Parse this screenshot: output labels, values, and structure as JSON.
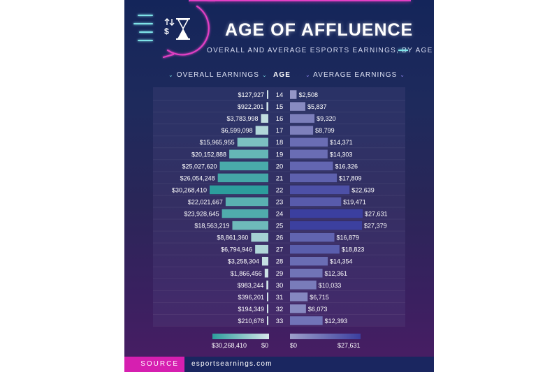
{
  "title": "AGE OF AFFLUENCE",
  "subtitle": "OVERALL AND AVERAGE ESPORTS EARNINGS, BY AGE",
  "headers": {
    "overall": "OVERALL EARNINGS",
    "age": "AGE",
    "average": "AVERAGE EARNINGS"
  },
  "colors": {
    "overall_low": "#d6e7ea",
    "overall_high": "#2c9d9c",
    "average_low": "#9d9fca",
    "average_high": "#3b3f9f",
    "accent_pink": "#d61fb0",
    "accent_cyan": "#7fe3e8"
  },
  "legend": {
    "overall_max": "$30,268,410",
    "overall_min": "$0",
    "average_min": "$0",
    "average_max": "$27,631"
  },
  "source": {
    "label": "SOURCE",
    "text": "esportsearnings.com"
  },
  "icons": [
    "hourglass-icon",
    "dollar-arrows-icon"
  ],
  "chart_data": {
    "type": "bar",
    "layout": "diverging",
    "categories": [
      "14",
      "15",
      "16",
      "17",
      "18",
      "19",
      "20",
      "21",
      "22",
      "23",
      "24",
      "25",
      "26",
      "27",
      "28",
      "29",
      "30",
      "31",
      "32",
      "33"
    ],
    "series": [
      {
        "name": "OVERALL EARNINGS",
        "values": [
          127927,
          922201,
          3783998,
          6599098,
          15965955,
          20152888,
          25027620,
          26054248,
          30268410,
          22021667,
          23928645,
          18563219,
          8861360,
          6794946,
          3258304,
          1866456,
          983244,
          396201,
          194349,
          210678
        ],
        "labels": [
          "$127,927",
          "$922,201",
          "$3,783,998",
          "$6,599,098",
          "$15,965,955",
          "$20,152,888",
          "$25,027,620",
          "$26,054,248",
          "$30,268,410",
          "$22,021,667",
          "$23,928,645",
          "$18,563,219",
          "$8,861,360",
          "$6,794,946",
          "$3,258,304",
          "$1,866,456",
          "$983,244",
          "$396,201",
          "$194,349",
          "$210,678"
        ],
        "max": 30268410
      },
      {
        "name": "AVERAGE EARNINGS",
        "values": [
          2508,
          5837,
          9320,
          8799,
          14371,
          14303,
          16326,
          17809,
          22639,
          19471,
          27631,
          27379,
          16879,
          18823,
          14354,
          12361,
          10033,
          6715,
          6073,
          12393
        ],
        "labels": [
          "$2,508",
          "$5,837",
          "$9,320",
          "$8,799",
          "$14,371",
          "$14,303",
          "$16,326",
          "$17,809",
          "$22,639",
          "$19,471",
          "$27,631",
          "$27,379",
          "$16,879",
          "$18,823",
          "$14,354",
          "$12,361",
          "$10,033",
          "$6,715",
          "$6,073",
          "$12,393"
        ],
        "max": 27631
      }
    ],
    "xlabel": "AGE",
    "grid": false
  }
}
